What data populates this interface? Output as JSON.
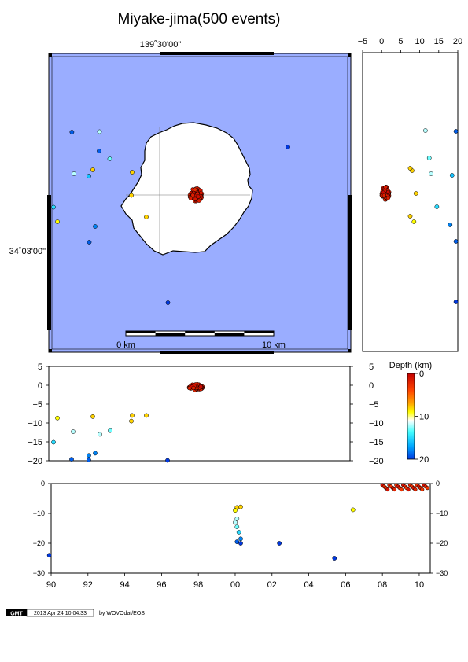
{
  "chart_data": [
    {
      "type": "scatter",
      "panel": "map",
      "title": "Miyake-jima(500 events)",
      "longitude_label": "139˚30'00\"",
      "latitude_label": "34˚03'00\"",
      "scale_bar": {
        "start_label": "0 km",
        "end_label": "10 km"
      },
      "colors": {
        "sea": "#9aadff",
        "island": "#ffffff"
      },
      "points": [
        {
          "x": 91.4,
          "y": 168,
          "depth": 19
        },
        {
          "x": 126.5,
          "y": 167.5,
          "depth": 12
        },
        {
          "x": 126.0,
          "y": 192,
          "depth": 19
        },
        {
          "x": 139.5,
          "y": 202,
          "depth": 13
        },
        {
          "x": 118.0,
          "y": 216,
          "depth": 8
        },
        {
          "x": 113.0,
          "y": 224,
          "depth": 16
        },
        {
          "x": 94.0,
          "y": 221,
          "depth": 12
        },
        {
          "x": 168.0,
          "y": 219,
          "depth": 8
        },
        {
          "x": 167.0,
          "y": 248.5,
          "depth": 8
        },
        {
          "x": 186.0,
          "y": 276,
          "depth": 8
        },
        {
          "x": 68.0,
          "y": 263.5,
          "depth": 15
        },
        {
          "x": 73.0,
          "y": 282,
          "depth": 9
        },
        {
          "x": 121.0,
          "y": 288,
          "depth": 18
        },
        {
          "x": 113.5,
          "y": 308,
          "depth": 19
        },
        {
          "x": 366.0,
          "y": 187,
          "depth": 20
        },
        {
          "x": 213.5,
          "y": 385,
          "depth": 20
        }
      ],
      "cluster": {
        "x": 249,
        "y": 248,
        "depth": 0.5,
        "count": 484
      }
    },
    {
      "type": "scatter",
      "panel": "east-west-depth-section",
      "x_ticks": [
        "−5",
        "0",
        "5",
        "10",
        "15",
        "20"
      ],
      "xlim": [
        -5,
        20
      ],
      "points": [
        {
          "x": 8.0,
          "y": 217,
          "depth": 8
        },
        {
          "x": 7.5,
          "y": 214,
          "depth": 8
        },
        {
          "x": 12.5,
          "y": 201,
          "depth": 13
        },
        {
          "x": 13.0,
          "y": 221,
          "depth": 12
        },
        {
          "x": 11.5,
          "y": 166,
          "depth": 12
        },
        {
          "x": 9.0,
          "y": 246,
          "depth": 8
        },
        {
          "x": 7.5,
          "y": 275,
          "depth": 8
        },
        {
          "x": 8.5,
          "y": 282,
          "depth": 9
        },
        {
          "x": 14.5,
          "y": 263,
          "depth": 15
        },
        {
          "x": 18.5,
          "y": 223,
          "depth": 16
        },
        {
          "x": 19.5,
          "y": 167,
          "depth": 19
        },
        {
          "x": 18.0,
          "y": 286,
          "depth": 18
        },
        {
          "x": 19.5,
          "y": 307,
          "depth": 19
        },
        {
          "x": 19.5,
          "y": 384,
          "depth": 20
        }
      ],
      "cluster": {
        "x": 1.0,
        "y": 246,
        "depth": 0.5
      }
    },
    {
      "type": "scatter",
      "panel": "north-south-depth-section",
      "y_ticks": [
        "5",
        "0",
        "−5",
        "−10",
        "−15",
        "−20"
      ],
      "ylim": [
        -20,
        5
      ],
      "legend_title": "Depth (km)",
      "colorbar_ticks": [
        "0",
        "10",
        "20"
      ],
      "points": [
        {
          "x": 73,
          "y": -8.7,
          "depth": 9
        },
        {
          "x": 118,
          "y": -8.3,
          "depth": 8
        },
        {
          "x": 168,
          "y": -8.0,
          "depth": 8
        },
        {
          "x": 167,
          "y": -9.5,
          "depth": 8
        },
        {
          "x": 186,
          "y": -8.0,
          "depth": 8
        },
        {
          "x": 93,
          "y": -12.3,
          "depth": 12
        },
        {
          "x": 127,
          "y": -13.0,
          "depth": 12
        },
        {
          "x": 140,
          "y": -12.0,
          "depth": 13
        },
        {
          "x": 68,
          "y": -15.1,
          "depth": 15
        },
        {
          "x": 121,
          "y": -18.0,
          "depth": 18
        },
        {
          "x": 113,
          "y": -18.6,
          "depth": 18
        },
        {
          "x": 91,
          "y": -19.6,
          "depth": 19
        },
        {
          "x": 113,
          "y": -19.8,
          "depth": 19
        },
        {
          "x": 213,
          "y": -19.9,
          "depth": 20
        }
      ],
      "cluster": {
        "x": 249,
        "y": -0.5,
        "depth": 0.5
      }
    },
    {
      "type": "scatter",
      "panel": "time-depth",
      "x_ticks": [
        "90",
        "92",
        "94",
        "96",
        "98",
        "00",
        "02",
        "04",
        "06",
        "08",
        "10"
      ],
      "y_ticks": [
        "0",
        "−10",
        "−20",
        "−30"
      ],
      "xlim": [
        1990,
        2010.6
      ],
      "ylim": [
        -30,
        0
      ],
      "points": [
        {
          "x": 1989.9,
          "y": -24.0,
          "depth": 20
        },
        {
          "x": 2000.1,
          "y": -8.0,
          "depth": 8
        },
        {
          "x": 2000.3,
          "y": -7.8,
          "depth": 8
        },
        {
          "x": 2000.0,
          "y": -9.0,
          "depth": 9
        },
        {
          "x": 2000.1,
          "y": -11.8,
          "depth": 12
        },
        {
          "x": 2000.0,
          "y": -13.0,
          "depth": 12
        },
        {
          "x": 2000.1,
          "y": -14.5,
          "depth": 13
        },
        {
          "x": 2000.2,
          "y": -16.3,
          "depth": 15
        },
        {
          "x": 2000.3,
          "y": -18.5,
          "depth": 18
        },
        {
          "x": 2000.1,
          "y": -19.5,
          "depth": 19
        },
        {
          "x": 2000.3,
          "y": -20.0,
          "depth": 20
        },
        {
          "x": 2002.4,
          "y": -20.0,
          "depth": 20
        },
        {
          "x": 2005.4,
          "y": -25.0,
          "depth": 20
        },
        {
          "x": 2006.4,
          "y": -8.8,
          "depth": 9
        }
      ],
      "cluster_range": {
        "x_start": 2008.0,
        "x_end": 2010.6,
        "depth": 1
      }
    }
  ],
  "footer": {
    "logo_text": "GMT",
    "timestamp": "2013 Apr 24 10:04:33",
    "credit": "by WOVOdat/EOS"
  }
}
